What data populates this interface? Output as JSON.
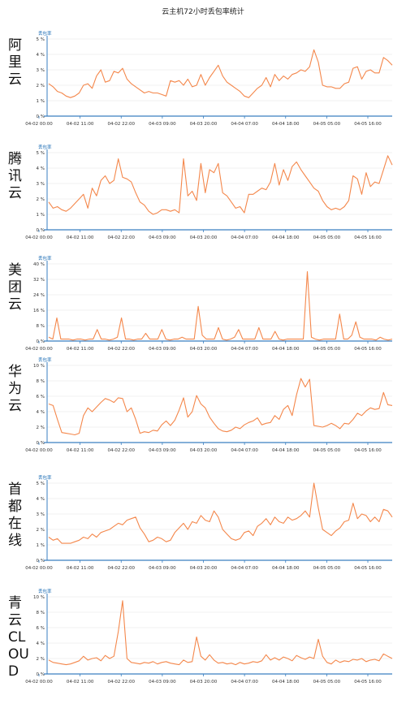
{
  "page": {
    "title": "云主机72小时丢包率统计"
  },
  "chart_data": [
    {
      "type": "line",
      "provider": "阿里云",
      "ylabel": "丢包率",
      "ylim": [
        0,
        5
      ],
      "yticks": [
        "0 %",
        "1 %",
        "2 %",
        "3 %",
        "4 %",
        "5 %"
      ],
      "xticks": [
        "04-02 00:00",
        "04-02 11:00",
        "04-02 22:00",
        "04-03 09:00",
        "04-03 20:00",
        "04-04 07:00",
        "04-04 18:00",
        "04-05 05:00",
        "04-05 16:00"
      ],
      "series": [
        {
          "color": "#f4874b",
          "values": [
            2.1,
            1.9,
            1.6,
            1.5,
            1.3,
            1.2,
            1.3,
            1.5,
            2.0,
            2.1,
            1.8,
            2.6,
            3.0,
            2.2,
            2.3,
            2.9,
            2.8,
            3.1,
            2.4,
            2.1,
            1.9,
            1.7,
            1.5,
            1.6,
            1.5,
            1.5,
            1.4,
            1.3,
            2.3,
            2.2,
            2.3,
            2.0,
            2.4,
            1.9,
            2.0,
            2.7,
            2.0,
            2.5,
            2.9,
            3.3,
            2.6,
            2.2,
            2.0,
            1.8,
            1.6,
            1.3,
            1.2,
            1.5,
            1.8,
            2.0,
            2.5,
            1.9,
            2.7,
            2.3,
            2.6,
            2.4,
            2.7,
            2.8,
            3.0,
            2.9,
            3.2,
            4.3,
            3.5,
            2.0,
            1.9,
            1.9,
            1.8,
            1.8,
            2.1,
            2.2,
            3.1,
            3.2,
            2.4,
            2.9,
            3.0,
            2.8,
            2.8,
            3.8,
            3.6,
            3.3
          ]
        }
      ]
    },
    {
      "type": "line",
      "provider": "腾讯云",
      "ylabel": "丢包率",
      "ylim": [
        0,
        5
      ],
      "yticks": [
        "0 %",
        "1 %",
        "2 %",
        "3 %",
        "4 %",
        "5 %"
      ],
      "xticks": [
        "04-02 00:00",
        "04-02 11:00",
        "04-02 22:00",
        "04-03 09:00",
        "04-03 20:00",
        "04-04 07:00",
        "04-04 18:00",
        "04-05 05:00",
        "04-05 16:00"
      ],
      "series": [
        {
          "color": "#f4874b",
          "values": [
            1.8,
            1.4,
            1.5,
            1.3,
            1.2,
            1.4,
            1.7,
            2.0,
            2.3,
            1.4,
            2.7,
            2.2,
            3.2,
            3.5,
            3.0,
            3.2,
            4.6,
            3.4,
            3.3,
            3.1,
            2.4,
            1.8,
            1.6,
            1.2,
            1.0,
            1.1,
            1.3,
            1.3,
            1.2,
            1.3,
            1.1,
            4.6,
            2.2,
            2.5,
            1.9,
            4.3,
            2.4,
            3.9,
            3.7,
            4.3,
            2.4,
            2.2,
            1.8,
            1.4,
            1.5,
            1.1,
            2.3,
            2.3,
            2.5,
            2.7,
            2.6,
            3.1,
            4.3,
            2.9,
            3.9,
            3.2,
            4.1,
            4.4,
            3.9,
            3.5,
            3.1,
            2.7,
            2.5,
            1.9,
            1.5,
            1.3,
            1.4,
            1.3,
            1.5,
            1.9,
            3.5,
            3.3,
            2.3,
            3.7,
            2.8,
            3.1,
            3.0,
            3.9,
            4.8,
            4.2
          ]
        }
      ]
    },
    {
      "type": "line",
      "provider": "美团云",
      "ylabel": "丢包率",
      "ylim": [
        0,
        40
      ],
      "yticks": [
        "0 %",
        "8 %",
        "16 %",
        "24 %",
        "32 %",
        "40 %"
      ],
      "xticks": [
        "04-02 00:00",
        "04-02 11:00",
        "04-02 22:00",
        "04-03 09:00",
        "04-03 20:00",
        "04-04 07:00",
        "04-04 18:00",
        "04-05 05:00",
        "04-05 16:00"
      ],
      "series": [
        {
          "color": "#f4874b",
          "values": [
            2,
            1,
            12,
            1,
            1,
            1,
            0.5,
            1,
            1,
            0.5,
            1,
            1,
            6,
            1,
            1,
            0.5,
            1,
            2,
            12,
            1,
            1,
            0.5,
            1,
            1,
            4,
            1,
            1,
            1,
            6,
            1,
            0.5,
            1,
            1,
            2,
            1,
            1,
            1,
            18,
            3,
            1,
            1,
            1,
            7,
            1,
            0.5,
            1,
            2,
            6,
            1,
            1,
            1,
            1,
            7,
            1,
            1,
            1,
            5,
            1,
            0.5,
            1,
            1,
            1,
            1,
            1,
            36,
            2,
            1,
            0.5,
            1,
            1,
            1,
            1,
            14,
            1,
            1,
            3,
            10,
            2,
            1,
            1,
            1,
            0.5,
            2,
            1,
            0.5,
            1
          ]
        }
      ]
    },
    {
      "type": "line",
      "provider": "华为云",
      "ylabel": "丢包率",
      "ylim": [
        0,
        10
      ],
      "yticks": [
        "0 %",
        "2 %",
        "4 %",
        "6 %",
        "8 %",
        "10 %"
      ],
      "xticks": [
        "04-02 00:00",
        "04-02 11:00",
        "04-02 22:00",
        "04-03 09:00",
        "04-03 20:00",
        "04-04 07:00",
        "04-04 18:00",
        "04-05 05:00",
        "04-05 16:00"
      ],
      "series": [
        {
          "color": "#f4874b",
          "values": [
            5.0,
            4.8,
            3.0,
            1.3,
            1.2,
            1.1,
            1.0,
            1.2,
            3.5,
            4.5,
            4.0,
            4.6,
            5.2,
            5.7,
            5.5,
            5.2,
            5.8,
            5.7,
            4.0,
            4.5,
            3.0,
            1.2,
            1.4,
            1.3,
            1.6,
            1.5,
            2.3,
            2.8,
            2.2,
            2.9,
            4.2,
            5.8,
            3.3,
            4.0,
            6.1,
            5.0,
            4.5,
            3.3,
            2.5,
            1.8,
            1.5,
            1.4,
            1.6,
            2.0,
            1.8,
            2.3,
            2.6,
            2.8,
            3.2,
            2.3,
            2.5,
            2.6,
            3.5,
            3.0,
            4.3,
            4.8,
            3.5,
            6.2,
            8.3,
            7.2,
            8.2,
            2.2,
            2.1,
            2.0,
            2.2,
            2.5,
            2.2,
            1.8,
            2.5,
            2.4,
            3.0,
            3.8,
            3.5,
            4.1,
            4.5,
            4.3,
            4.4,
            6.5,
            4.9,
            4.8
          ]
        }
      ]
    },
    {
      "type": "line",
      "provider": "首都在线",
      "ylabel": "丢包率",
      "ylim": [
        0,
        5
      ],
      "yticks": [
        "0 %",
        "1 %",
        "2 %",
        "3 %",
        "4 %",
        "5 %"
      ],
      "xticks": [
        "04-02 00:00",
        "04-02 11:00",
        "04-02 22:00",
        "04-03 09:00",
        "04-03 20:00",
        "04-04 07:00",
        "04-04 18:00",
        "04-05 05:00",
        "04-05 16:00"
      ],
      "series": [
        {
          "color": "#f4874b",
          "values": [
            1.5,
            1.3,
            1.4,
            1.1,
            1.1,
            1.1,
            1.2,
            1.3,
            1.5,
            1.4,
            1.7,
            1.5,
            1.8,
            1.9,
            2.0,
            2.2,
            2.4,
            2.3,
            2.6,
            2.7,
            2.8,
            2.1,
            1.7,
            1.2,
            1.3,
            1.5,
            1.4,
            1.2,
            1.3,
            1.8,
            2.1,
            2.4,
            2.0,
            2.5,
            2.4,
            2.9,
            2.6,
            2.5,
            3.2,
            2.8,
            2.0,
            1.7,
            1.4,
            1.3,
            1.4,
            1.8,
            1.9,
            1.6,
            2.2,
            2.4,
            2.7,
            2.3,
            2.8,
            2.5,
            2.4,
            2.8,
            2.6,
            2.7,
            2.9,
            3.2,
            2.8,
            5.0,
            3.4,
            2.0,
            1.8,
            1.6,
            1.9,
            2.1,
            2.5,
            2.6,
            3.7,
            2.7,
            3.0,
            2.9,
            2.5,
            2.8,
            2.5,
            3.3,
            3.2,
            2.8
          ]
        }
      ]
    },
    {
      "type": "line",
      "provider": "青云CLOUD",
      "ylabel": "丢包率",
      "ylim": [
        0,
        10
      ],
      "yticks": [
        "0 %",
        "2 %",
        "4 %",
        "6 %",
        "8 %",
        "10 %"
      ],
      "xticks": [
        "04-02 00:00",
        "04-02 11:00",
        "04-02 22:00",
        "04-03 09:00",
        "04-03 20:00",
        "04-04 07:00",
        "04-04 18:00",
        "04-05 05:00",
        "04-05 16:00"
      ],
      "series": [
        {
          "color": "#f4874b",
          "values": [
            1.8,
            1.5,
            1.4,
            1.3,
            1.2,
            1.3,
            1.5,
            1.7,
            2.3,
            1.8,
            2.0,
            2.1,
            1.7,
            2.4,
            2.0,
            2.3,
            5.5,
            9.5,
            2.0,
            1.5,
            1.4,
            1.3,
            1.5,
            1.4,
            1.6,
            1.3,
            1.5,
            1.6,
            1.4,
            1.3,
            1.2,
            1.8,
            1.5,
            1.6,
            4.8,
            2.3,
            1.8,
            2.5,
            1.8,
            1.4,
            1.5,
            1.3,
            1.4,
            1.2,
            1.5,
            1.3,
            1.4,
            1.6,
            1.5,
            1.7,
            2.5,
            1.8,
            2.1,
            1.8,
            2.2,
            2.0,
            1.7,
            2.4,
            2.1,
            1.9,
            2.2,
            2.0,
            4.5,
            2.3,
            1.5,
            1.3,
            1.8,
            1.5,
            1.7,
            1.6,
            1.9,
            1.8,
            2.0,
            1.6,
            1.8,
            1.9,
            1.7,
            2.6,
            2.3,
            2.0
          ]
        }
      ]
    }
  ]
}
